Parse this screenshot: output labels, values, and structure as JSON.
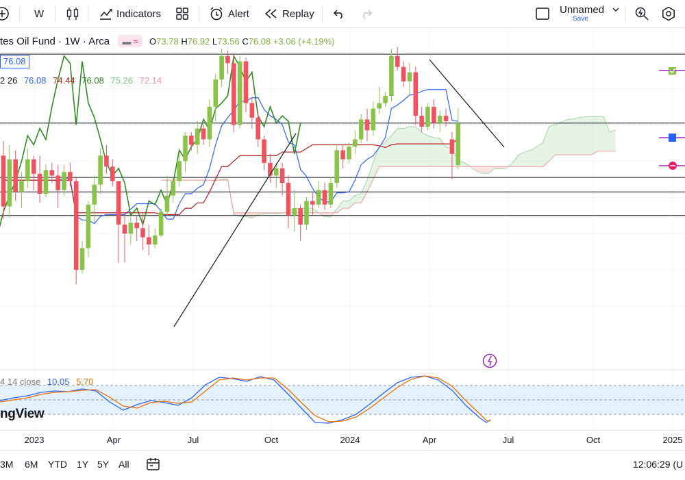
{
  "toolbar": {
    "interval": "W",
    "indicators_label": "Indicators",
    "alert_label": "Alert",
    "replay_label": "Replay",
    "layout_name": "Unnamed",
    "save_label": "Save"
  },
  "legend": {
    "symbol": "tes Oil Fund · 1W · Arca",
    "o_label": "O",
    "o": "73.78",
    "h_label": "H",
    "h": "76.92",
    "l_label": "L",
    "l": "73.56",
    "c_label": "C",
    "c": "76.08",
    "change": "+3.06 (+4.19%)",
    "price_box": "76.08"
  },
  "ichimoku_legend": {
    "params": "2 26",
    "v1": "76.08",
    "v2": "74.44",
    "v3": "76.08",
    "v4": "75.26",
    "v5": "72.14"
  },
  "oscillator_legend": {
    "params": "4 14 close",
    "k": "10.05",
    "d": "5.70"
  },
  "watermark": "ngView",
  "x_axis": [
    "2023",
    "Apr",
    "Jul",
    "Oct",
    "2024",
    "Apr",
    "Jul",
    "Oct",
    "2025"
  ],
  "ranges": [
    "3M",
    "6M",
    "YTD",
    "1Y",
    "5Y",
    "All"
  ],
  "clock": "12:06:29 (U",
  "colors": {
    "up": "#8bc34a",
    "down": "#f05360",
    "conversion": "#2962ff",
    "base": "#b71c1c",
    "lagging": "#2e8b22",
    "span_a": "#a5d6a7",
    "span_b": "#ef9a9a",
    "stoch_k": "#2962ff",
    "stoch_d": "#ef6c00"
  },
  "chart_data": {
    "type": "candlestick",
    "title": "tes Oil Fund · 1W · Arca",
    "ylim": [
      64,
      81
    ],
    "candles": [
      {
        "o": 74.3,
        "h": 75.1,
        "l": 70.8,
        "c": 71.5
      },
      {
        "o": 71.5,
        "h": 74.9,
        "l": 70.9,
        "c": 74.1
      },
      {
        "o": 74.1,
        "h": 74.6,
        "l": 71.8,
        "c": 72.3
      },
      {
        "o": 72.3,
        "h": 73.4,
        "l": 71.4,
        "c": 72.9
      },
      {
        "o": 72.9,
        "h": 74.7,
        "l": 72.5,
        "c": 74.1
      },
      {
        "o": 74.1,
        "h": 74.3,
        "l": 72.4,
        "c": 73.3
      },
      {
        "o": 73.3,
        "h": 74.3,
        "l": 71.7,
        "c": 72.2
      },
      {
        "o": 72.2,
        "h": 73.8,
        "l": 72.0,
        "c": 73.5
      },
      {
        "o": 73.5,
        "h": 73.9,
        "l": 72.8,
        "c": 73.2
      },
      {
        "o": 73.2,
        "h": 73.8,
        "l": 71.4,
        "c": 72.4
      },
      {
        "o": 72.4,
        "h": 73.8,
        "l": 72.1,
        "c": 73.4
      },
      {
        "o": 73.4,
        "h": 73.9,
        "l": 72.6,
        "c": 72.9
      },
      {
        "o": 72.9,
        "h": 73.1,
        "l": 67.2,
        "c": 68.0
      },
      {
        "o": 68.0,
        "h": 69.6,
        "l": 67.8,
        "c": 69.2
      },
      {
        "o": 69.2,
        "h": 71.8,
        "l": 68.7,
        "c": 71.6
      },
      {
        "o": 71.6,
        "h": 73.2,
        "l": 70.6,
        "c": 72.7
      },
      {
        "o": 72.7,
        "h": 74.7,
        "l": 72.2,
        "c": 74.3
      },
      {
        "o": 74.3,
        "h": 74.9,
        "l": 73.3,
        "c": 73.7
      },
      {
        "o": 73.7,
        "h": 74.1,
        "l": 72.6,
        "c": 72.9
      },
      {
        "o": 72.9,
        "h": 72.9,
        "l": 68.4,
        "c": 70.5
      },
      {
        "o": 70.5,
        "h": 71.0,
        "l": 68.4,
        "c": 70.0
      },
      {
        "o": 70.0,
        "h": 70.9,
        "l": 69.4,
        "c": 70.6
      },
      {
        "o": 70.6,
        "h": 71.0,
        "l": 69.6,
        "c": 70.3
      },
      {
        "o": 70.3,
        "h": 71.2,
        "l": 69.1,
        "c": 69.8
      },
      {
        "o": 69.8,
        "h": 70.5,
        "l": 68.8,
        "c": 69.4
      },
      {
        "o": 69.4,
        "h": 70.3,
        "l": 69.2,
        "c": 69.9
      },
      {
        "o": 69.9,
        "h": 71.4,
        "l": 69.8,
        "c": 71.2
      },
      {
        "o": 71.2,
        "h": 73.2,
        "l": 71.0,
        "c": 72.1
      },
      {
        "o": 72.1,
        "h": 73.1,
        "l": 71.7,
        "c": 72.9
      },
      {
        "o": 72.9,
        "h": 74.5,
        "l": 72.6,
        "c": 74.0
      },
      {
        "o": 74.0,
        "h": 75.6,
        "l": 73.4,
        "c": 75.4
      },
      {
        "o": 75.4,
        "h": 75.6,
        "l": 74.6,
        "c": 74.9
      },
      {
        "o": 74.9,
        "h": 76.2,
        "l": 74.4,
        "c": 75.8
      },
      {
        "o": 75.8,
        "h": 76.0,
        "l": 74.9,
        "c": 75.2
      },
      {
        "o": 75.2,
        "h": 77.4,
        "l": 74.8,
        "c": 77.0
      },
      {
        "o": 77.0,
        "h": 78.8,
        "l": 76.2,
        "c": 78.5
      },
      {
        "o": 78.5,
        "h": 80.2,
        "l": 78.1,
        "c": 79.8
      },
      {
        "o": 79.8,
        "h": 80.1,
        "l": 78.8,
        "c": 79.4
      },
      {
        "o": 79.4,
        "h": 79.9,
        "l": 75.6,
        "c": 76.0
      },
      {
        "o": 76.0,
        "h": 79.8,
        "l": 75.8,
        "c": 79.5
      },
      {
        "o": 79.5,
        "h": 79.7,
        "l": 76.7,
        "c": 77.2
      },
      {
        "o": 77.2,
        "h": 77.5,
        "l": 75.8,
        "c": 76.4
      },
      {
        "o": 76.4,
        "h": 76.7,
        "l": 74.8,
        "c": 75.2
      },
      {
        "o": 75.2,
        "h": 75.4,
        "l": 73.5,
        "c": 73.9
      },
      {
        "o": 73.9,
        "h": 74.4,
        "l": 72.8,
        "c": 73.2
      },
      {
        "o": 73.2,
        "h": 73.9,
        "l": 72.5,
        "c": 73.6
      },
      {
        "o": 73.6,
        "h": 73.9,
        "l": 72.1,
        "c": 72.8
      },
      {
        "o": 72.8,
        "h": 73.2,
        "l": 70.3,
        "c": 71.0
      },
      {
        "o": 71.0,
        "h": 72.4,
        "l": 70.1,
        "c": 71.4
      },
      {
        "o": 71.4,
        "h": 71.6,
        "l": 69.6,
        "c": 70.5
      },
      {
        "o": 70.5,
        "h": 72.0,
        "l": 70.2,
        "c": 71.8
      },
      {
        "o": 71.8,
        "h": 72.3,
        "l": 71.0,
        "c": 71.6
      },
      {
        "o": 71.6,
        "h": 72.9,
        "l": 71.4,
        "c": 72.4
      },
      {
        "o": 72.4,
        "h": 72.8,
        "l": 71.3,
        "c": 71.6
      },
      {
        "o": 71.6,
        "h": 73.1,
        "l": 71.4,
        "c": 72.8
      },
      {
        "o": 72.8,
        "h": 74.9,
        "l": 72.5,
        "c": 74.6
      },
      {
        "o": 74.6,
        "h": 74.9,
        "l": 73.6,
        "c": 74.1
      },
      {
        "o": 74.1,
        "h": 75.0,
        "l": 73.9,
        "c": 74.8
      },
      {
        "o": 74.8,
        "h": 75.7,
        "l": 74.4,
        "c": 75.2
      },
      {
        "o": 75.2,
        "h": 76.6,
        "l": 75.0,
        "c": 76.3
      },
      {
        "o": 76.3,
        "h": 76.9,
        "l": 75.1,
        "c": 75.7
      },
      {
        "o": 75.7,
        "h": 77.3,
        "l": 75.4,
        "c": 76.9
      },
      {
        "o": 76.9,
        "h": 78.1,
        "l": 76.6,
        "c": 77.2
      },
      {
        "o": 77.2,
        "h": 77.8,
        "l": 77.0,
        "c": 77.6
      },
      {
        "o": 77.6,
        "h": 80.2,
        "l": 77.3,
        "c": 79.8
      },
      {
        "o": 79.8,
        "h": 80.3,
        "l": 79.0,
        "c": 79.2
      },
      {
        "o": 79.2,
        "h": 79.5,
        "l": 78.1,
        "c": 78.4
      },
      {
        "o": 78.4,
        "h": 79.4,
        "l": 77.6,
        "c": 78.9
      },
      {
        "o": 78.9,
        "h": 79.2,
        "l": 76.0,
        "c": 76.5
      },
      {
        "o": 76.5,
        "h": 77.0,
        "l": 75.6,
        "c": 75.9
      },
      {
        "o": 75.9,
        "h": 77.2,
        "l": 75.7,
        "c": 77.0
      },
      {
        "o": 77.0,
        "h": 77.4,
        "l": 75.8,
        "c": 76.1
      },
      {
        "o": 76.1,
        "h": 76.8,
        "l": 75.6,
        "c": 76.5
      },
      {
        "o": 76.5,
        "h": 76.9,
        "l": 75.9,
        "c": 76.2
      },
      {
        "o": 75.2,
        "h": 75.6,
        "l": 73.0,
        "c": 74.4
      },
      {
        "o": 73.78,
        "h": 76.92,
        "l": 73.56,
        "c": 76.08
      }
    ],
    "horizontal_levels": [
      79.9,
      76.1,
      73.1,
      72.3,
      71.0
    ],
    "x_ticks": [
      "2023",
      "Apr",
      "Jul",
      "Oct",
      "2024",
      "Apr",
      "Jul",
      "Oct",
      "2025"
    ]
  }
}
